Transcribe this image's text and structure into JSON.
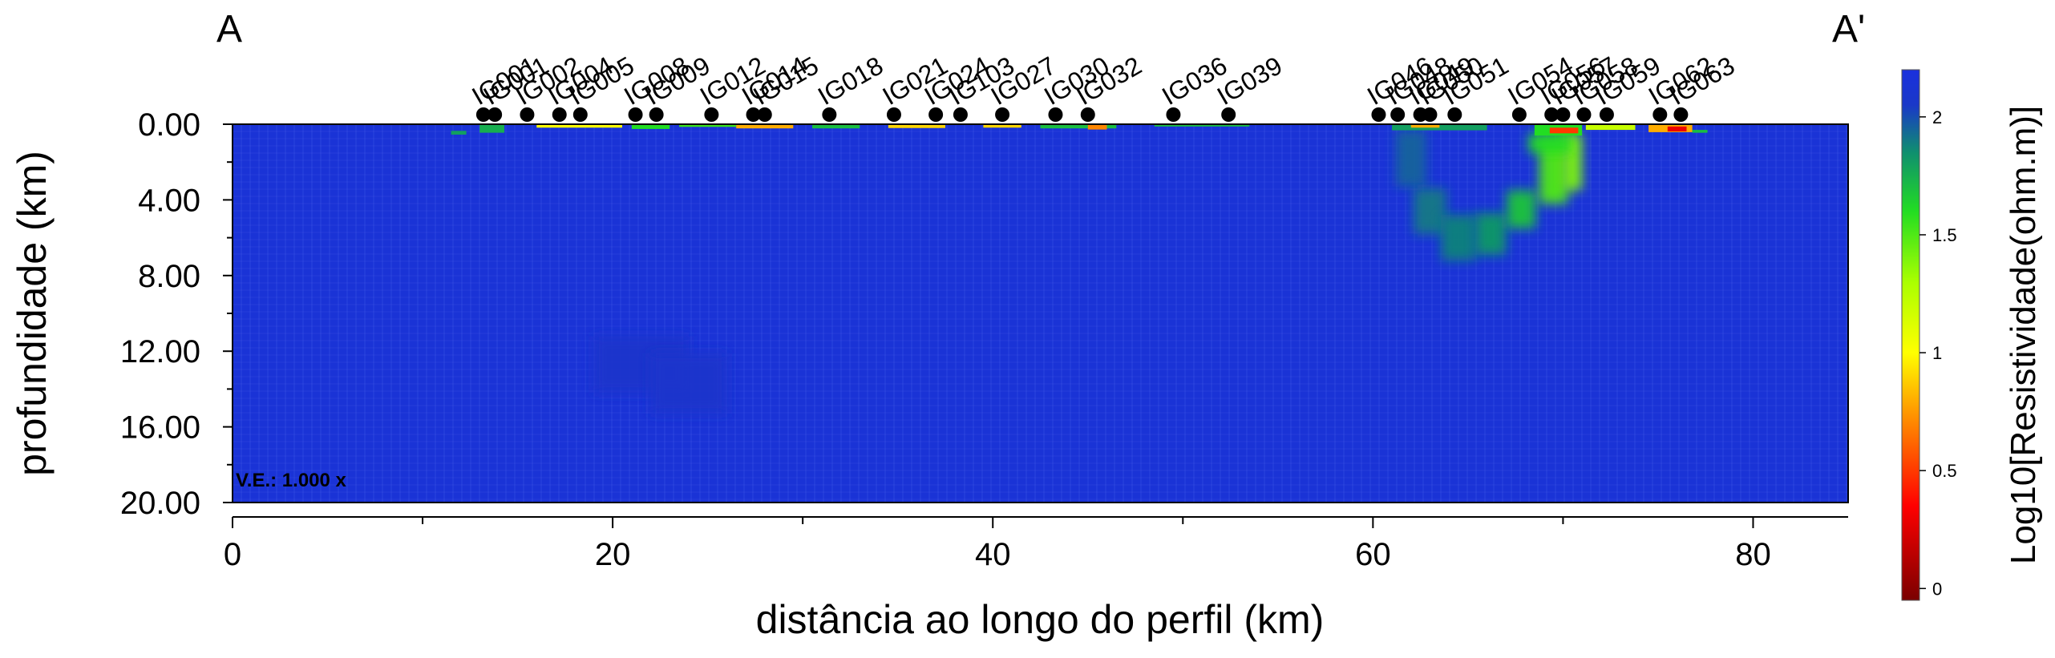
{
  "chart_data": {
    "type": "heatmap",
    "title": "",
    "corner_labels": {
      "left": "A",
      "right": "A'"
    },
    "xlabel": "distância ao longo do perfil (km)",
    "ylabel": "profundidade (km)",
    "xlim": [
      0,
      85
    ],
    "ylim": [
      0,
      20
    ],
    "y_inverted": true,
    "x_ticks": [
      0,
      20,
      40,
      60,
      80
    ],
    "x_tick_labels": [
      "0",
      "20",
      "40",
      "60",
      "80"
    ],
    "x_minor_ticks": [
      10,
      30,
      50,
      70
    ],
    "y_ticks": [
      0,
      4,
      8,
      12,
      16,
      20
    ],
    "y_tick_labels": [
      "0.00",
      "4.00",
      "8.00",
      "12.00",
      "16.00",
      "20.00"
    ],
    "y_minor_ticks": [
      2,
      6,
      10,
      14,
      18
    ],
    "vertical_exaggeration_label": "V.E.: 1.000 x",
    "background_value": 2.15,
    "colorbar": {
      "title": "Log10[Resistividade(ohm.m)]",
      "range": [
        -0.05,
        2.2
      ],
      "ticks": [
        0,
        0.5,
        1,
        1.5,
        2
      ],
      "tick_labels": [
        "0",
        "0.5",
        "1",
        "1.5",
        "2"
      ],
      "stops": [
        {
          "value": -0.05,
          "color": "#7a0000"
        },
        {
          "value": 0.35,
          "color": "#ff0000"
        },
        {
          "value": 0.75,
          "color": "#ff9900"
        },
        {
          "value": 1.0,
          "color": "#ffff00"
        },
        {
          "value": 1.3,
          "color": "#aaff00"
        },
        {
          "value": 1.6,
          "color": "#22dd22"
        },
        {
          "value": 1.85,
          "color": "#0f8f6f"
        },
        {
          "value": 2.05,
          "color": "#1a38c8"
        },
        {
          "value": 2.2,
          "color": "#1a30dd"
        }
      ]
    },
    "stations": [
      {
        "name": "IG001",
        "x": 13.2
      },
      {
        "name": "IG001",
        "x": 13.8
      },
      {
        "name": "IG002",
        "x": 15.5
      },
      {
        "name": "IG004",
        "x": 17.2
      },
      {
        "name": "IG005",
        "x": 18.3
      },
      {
        "name": "IG008",
        "x": 21.2
      },
      {
        "name": "IG009",
        "x": 22.3
      },
      {
        "name": "IG012",
        "x": 25.2
      },
      {
        "name": "IG014",
        "x": 27.4
      },
      {
        "name": "IG015",
        "x": 28.0
      },
      {
        "name": "IG018",
        "x": 31.4
      },
      {
        "name": "IG021",
        "x": 34.8
      },
      {
        "name": "IG024",
        "x": 37.0
      },
      {
        "name": "IG103",
        "x": 38.3
      },
      {
        "name": "IG027",
        "x": 40.5
      },
      {
        "name": "IG030",
        "x": 43.3
      },
      {
        "name": "IG032",
        "x": 45.0
      },
      {
        "name": "IG036",
        "x": 49.5
      },
      {
        "name": "IG039",
        "x": 52.4
      },
      {
        "name": "IG046",
        "x": 60.3
      },
      {
        "name": "IG048",
        "x": 61.3
      },
      {
        "name": "IG049",
        "x": 62.5
      },
      {
        "name": "IG050",
        "x": 63.0
      },
      {
        "name": "IG051",
        "x": 64.3
      },
      {
        "name": "IG054",
        "x": 67.7
      },
      {
        "name": "IG056",
        "x": 69.4
      },
      {
        "name": "IG057",
        "x": 70.0
      },
      {
        "name": "IG058",
        "x": 71.1
      },
      {
        "name": "IG059",
        "x": 72.3
      },
      {
        "name": "IG062",
        "x": 75.1
      },
      {
        "name": "IG063",
        "x": 76.2
      }
    ],
    "anomalies": [
      {
        "x": 21.5,
        "y": 12.7,
        "w": 5.0,
        "h": 3.0,
        "value": 2.08
      },
      {
        "x": 24.0,
        "y": 13.7,
        "w": 4.0,
        "h": 3.2,
        "value": 2.08
      },
      {
        "x": 62.0,
        "y": 1.8,
        "w": 1.6,
        "h": 3.0,
        "value": 1.95
      },
      {
        "x": 63.0,
        "y": 4.6,
        "w": 1.7,
        "h": 2.4,
        "value": 1.9
      },
      {
        "x": 64.5,
        "y": 6.0,
        "w": 1.8,
        "h": 2.4,
        "value": 1.88
      },
      {
        "x": 66.2,
        "y": 5.8,
        "w": 1.6,
        "h": 2.2,
        "value": 1.82
      },
      {
        "x": 67.8,
        "y": 4.5,
        "w": 1.5,
        "h": 2.0,
        "value": 1.68
      },
      {
        "x": 69.5,
        "y": 2.5,
        "w": 1.5,
        "h": 3.4,
        "value": 1.5
      },
      {
        "x": 70.5,
        "y": 2.0,
        "w": 1.0,
        "h": 3.0,
        "value": 1.4
      },
      {
        "x": 69.3,
        "y": 1.0,
        "w": 2.2,
        "h": 1.0,
        "value": 1.6
      }
    ],
    "surface_cells": [
      {
        "x0": 11.5,
        "x1": 12.3,
        "y0": 0.35,
        "y1": 0.55,
        "value": 1.8
      },
      {
        "x0": 13.0,
        "x1": 14.3,
        "y0": 0.0,
        "y1": 0.45,
        "value": 1.75
      },
      {
        "x0": 16.0,
        "x1": 20.5,
        "y0": 0.0,
        "y1": 0.18,
        "value": 1.0
      },
      {
        "x0": 21.0,
        "x1": 23.0,
        "y0": 0.0,
        "y1": 0.25,
        "value": 1.6
      },
      {
        "x0": 23.5,
        "x1": 26.5,
        "y0": 0.0,
        "y1": 0.14,
        "value": 1.55
      },
      {
        "x0": 26.5,
        "x1": 29.5,
        "y0": 0.0,
        "y1": 0.22,
        "value": 0.8
      },
      {
        "x0": 30.5,
        "x1": 33.0,
        "y0": 0.0,
        "y1": 0.22,
        "value": 1.7
      },
      {
        "x0": 34.5,
        "x1": 37.5,
        "y0": 0.0,
        "y1": 0.2,
        "value": 0.9
      },
      {
        "x0": 39.5,
        "x1": 41.5,
        "y0": 0.0,
        "y1": 0.18,
        "value": 0.9
      },
      {
        "x0": 42.5,
        "x1": 46.5,
        "y0": 0.0,
        "y1": 0.22,
        "value": 1.7
      },
      {
        "x0": 45.0,
        "x1": 46.0,
        "y0": 0.0,
        "y1": 0.28,
        "value": 0.7
      },
      {
        "x0": 48.5,
        "x1": 53.5,
        "y0": 0.0,
        "y1": 0.12,
        "value": 1.7
      },
      {
        "x0": 61.0,
        "x1": 66.0,
        "y0": 0.0,
        "y1": 0.32,
        "value": 1.8
      },
      {
        "x0": 62.0,
        "x1": 63.5,
        "y0": 0.0,
        "y1": 0.18,
        "value": 0.8
      },
      {
        "x0": 68.5,
        "x1": 71.0,
        "y0": 0.0,
        "y1": 0.6,
        "value": 1.6
      },
      {
        "x0": 69.3,
        "x1": 70.8,
        "y0": 0.18,
        "y1": 0.48,
        "value": 0.5
      },
      {
        "x0": 71.2,
        "x1": 73.8,
        "y0": 0.0,
        "y1": 0.3,
        "value": 1.2
      },
      {
        "x0": 74.5,
        "x1": 76.8,
        "y0": 0.0,
        "y1": 0.42,
        "value": 0.8
      },
      {
        "x0": 75.5,
        "x1": 76.5,
        "y0": 0.12,
        "y1": 0.38,
        "value": 0.3
      },
      {
        "x0": 76.8,
        "x1": 77.6,
        "y0": 0.3,
        "y1": 0.45,
        "value": 1.7
      }
    ]
  }
}
